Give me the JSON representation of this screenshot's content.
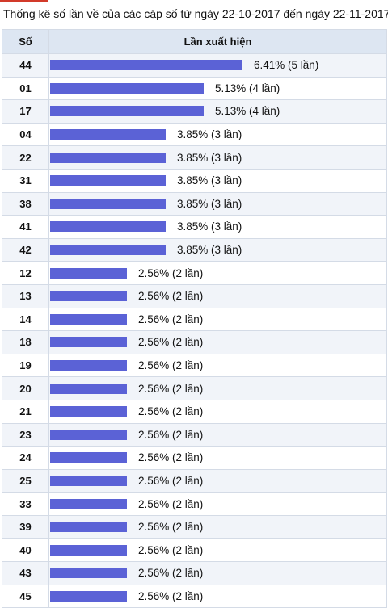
{
  "title": "Thống kê số lần về của các cặp số từ ngày 22-10-2017 đến ngày 22-11-2017",
  "colors": {
    "bar": "#5b62d6",
    "header_bg": "#dde6f2",
    "stripe": "#f1f4f9",
    "accent": "#d23a2a"
  },
  "table": {
    "col_number": "Số",
    "col_frequency": "Lần xuất hiện"
  },
  "chart_data": {
    "type": "bar",
    "orientation": "horizontal",
    "categories": [
      "44",
      "01",
      "17",
      "04",
      "22",
      "31",
      "38",
      "41",
      "42",
      "12",
      "13",
      "14",
      "18",
      "19",
      "20",
      "21",
      "23",
      "24",
      "25",
      "33",
      "39",
      "40",
      "43",
      "45"
    ],
    "values": [
      6.41,
      5.13,
      5.13,
      3.85,
      3.85,
      3.85,
      3.85,
      3.85,
      3.85,
      2.56,
      2.56,
      2.56,
      2.56,
      2.56,
      2.56,
      2.56,
      2.56,
      2.56,
      2.56,
      2.56,
      2.56,
      2.56,
      2.56,
      2.56
    ],
    "labels": [
      "6.41% (5 lần)",
      "5.13% (4 lần)",
      "5.13% (4 lần)",
      "3.85% (3 lần)",
      "3.85% (3 lần)",
      "3.85% (3 lần)",
      "3.85% (3 lần)",
      "3.85% (3 lần)",
      "3.85% (3 lần)",
      "2.56% (2 lần)",
      "2.56% (2 lần)",
      "2.56% (2 lần)",
      "2.56% (2 lần)",
      "2.56% (2 lần)",
      "2.56% (2 lần)",
      "2.56% (2 lần)",
      "2.56% (2 lần)",
      "2.56% (2 lần)",
      "2.56% (2 lần)",
      "2.56% (2 lần)",
      "2.56% (2 lần)",
      "2.56% (2 lần)",
      "2.56% (2 lần)",
      "2.56% (2 lần)"
    ],
    "unit": "%"
  }
}
